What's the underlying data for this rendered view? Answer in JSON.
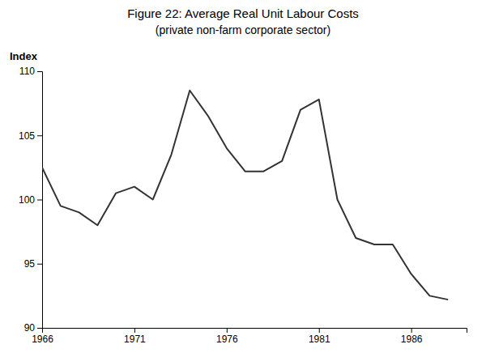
{
  "chart_data": {
    "type": "line",
    "title": "Figure 22: Average Real Unit Labour Costs",
    "subtitle": "(private non-farm corporate sector)",
    "ylabel": "Index",
    "x": [
      1966,
      1967,
      1968,
      1969,
      1970,
      1971,
      1972,
      1973,
      1974,
      1975,
      1976,
      1977,
      1978,
      1979,
      1980,
      1981,
      1982,
      1983,
      1984,
      1985,
      1986,
      1987,
      1988
    ],
    "values": [
      102.5,
      99.5,
      99.0,
      98.0,
      100.5,
      101.0,
      100.0,
      103.5,
      108.5,
      106.5,
      104.0,
      102.2,
      102.2,
      103.0,
      107.0,
      107.8,
      100.0,
      97.0,
      96.5,
      96.5,
      94.2,
      92.5,
      92.2
    ],
    "color": "#333333",
    "xlim": [
      1966,
      1989
    ],
    "ylim": [
      90,
      110
    ],
    "xticks": [
      1966,
      1971,
      1976,
      1981,
      1986
    ],
    "yticks": [
      90,
      95,
      100,
      105,
      110
    ],
    "grid": false
  }
}
